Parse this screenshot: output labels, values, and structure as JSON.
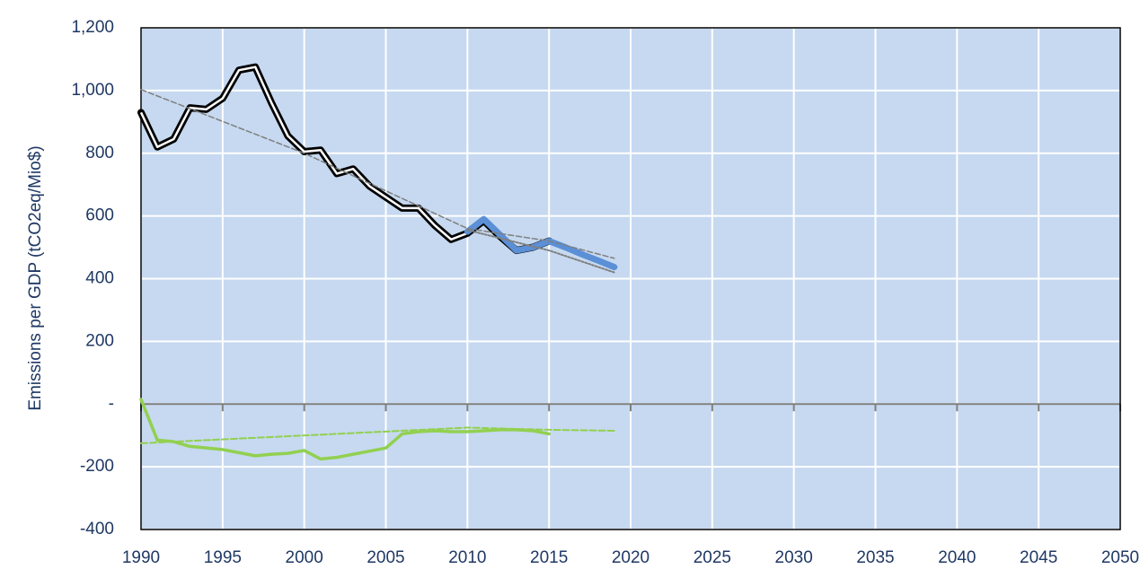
{
  "chart_data": {
    "type": "line",
    "y_label": "Emissions per GDP (tCO2eq/Mio$)",
    "xlim": [
      1990,
      2050
    ],
    "xticks": [
      1990,
      1995,
      2000,
      2005,
      2010,
      2015,
      2020,
      2025,
      2030,
      2035,
      2040,
      2045,
      2050
    ],
    "ylim": [
      -400,
      1200
    ],
    "yticks": [
      -400,
      -200,
      {
        "value": 0,
        "label": "-"
      },
      200,
      400,
      600,
      800,
      {
        "value": 1000,
        "label": "1,000"
      },
      {
        "value": 1200,
        "label": "1,200"
      }
    ],
    "grid": true,
    "background": "#c6d9f0",
    "series": [
      {
        "color": "#000000",
        "style": "double",
        "x": [
          1990,
          1991,
          1992,
          1993,
          1994,
          1995,
          1996,
          1997,
          1998,
          1999,
          2000,
          2001,
          2002,
          2003,
          2004,
          2005,
          2006,
          2007,
          2008,
          2009,
          2010,
          2011,
          2012,
          2013,
          2014,
          2015
        ],
        "values": [
          930,
          820,
          845,
          945,
          940,
          975,
          1065,
          1075,
          960,
          855,
          805,
          810,
          735,
          750,
          695,
          660,
          625,
          625,
          570,
          525,
          545,
          585,
          535,
          490,
          500,
          520
        ]
      },
      {
        "color": "#5b8fd6",
        "style": "thick",
        "x": [
          2010,
          2011,
          2012,
          2013,
          2014,
          2015,
          2016,
          2017,
          2018,
          2019
        ],
        "values": [
          550,
          590,
          540,
          490,
          500,
          520,
          500,
          478,
          458,
          437
        ]
      },
      {
        "color": "#7f7f7f",
        "style": "dashed",
        "x": [
          1990,
          2000,
          2010,
          2015,
          2019
        ],
        "values": [
          1003,
          800,
          560,
          520,
          465
        ]
      },
      {
        "color": "#7f7f7f",
        "style": "dotted",
        "x": [
          2010,
          2015,
          2019
        ],
        "values": [
          555,
          490,
          420
        ]
      },
      {
        "color": "#92d050",
        "style": "solid",
        "x": [
          1990,
          1991,
          1992,
          1993,
          1994,
          1995,
          1996,
          1997,
          1998,
          1999,
          2000,
          2001,
          2002,
          2003,
          2004,
          2005,
          2006,
          2007,
          2008,
          2009,
          2010,
          2011,
          2012,
          2013,
          2014,
          2015
        ],
        "values": [
          15,
          -115,
          -120,
          -135,
          -140,
          -145,
          -155,
          -165,
          -160,
          -157,
          -148,
          -175,
          -170,
          -160,
          -150,
          -140,
          -95,
          -88,
          -85,
          -88,
          -88,
          -85,
          -82,
          -82,
          -85,
          -95
        ]
      },
      {
        "color": "#92d050",
        "style": "thindash",
        "x": [
          1990,
          2000,
          2010,
          2015,
          2019
        ],
        "values": [
          -125,
          -100,
          -75,
          -82,
          -85
        ]
      }
    ]
  }
}
